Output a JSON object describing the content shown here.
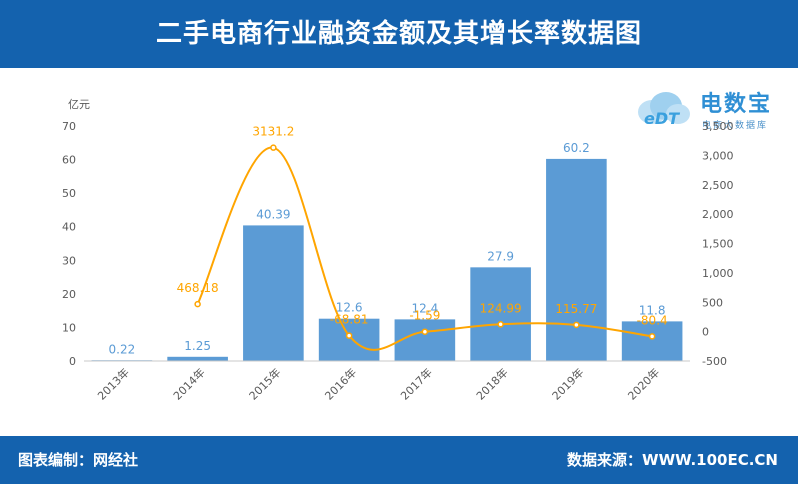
{
  "header": {
    "title": "二手电商行业融资金额及其增长率数据图"
  },
  "footer": {
    "left": "图表编制：网经社",
    "right": "数据来源：WWW.100EC.CN"
  },
  "logo": {
    "name": "电数宝",
    "sub": "电商大数据库",
    "badge_text": "eDT"
  },
  "colors": {
    "bar": "#5b9bd5",
    "line": "#ffa500",
    "header": "#1462ae",
    "axis_text": "#595959"
  },
  "chart_data": {
    "type": "bar",
    "categories": [
      "2013年",
      "2014年",
      "2015年",
      "2016年",
      "2017年",
      "2018年",
      "2019年",
      "2020年"
    ],
    "y_unit_label": "亿元",
    "ylim": [
      0,
      70
    ],
    "yticks": [
      0,
      10,
      20,
      30,
      40,
      50,
      60,
      70
    ],
    "y2lim": [
      -500,
      3500
    ],
    "y2ticks": [
      -500,
      0,
      500,
      1000,
      1500,
      2000,
      2500,
      3000,
      3500
    ],
    "y2tick_labels": [
      "-500",
      "0",
      "500",
      "1,000",
      "1,500",
      "2,000",
      "2,500",
      "3,000",
      "3,500"
    ],
    "series": [
      {
        "type": "bar",
        "axis": "left",
        "values": [
          0.22,
          1.25,
          40.39,
          12.6,
          12.4,
          27.9,
          60.2,
          11.8
        ],
        "labels": [
          "0.22",
          "1.25",
          "40.39",
          "12.6",
          "12.4",
          "27.9",
          "60.2",
          "11.8"
        ]
      },
      {
        "type": "line",
        "axis": "right",
        "values": [
          null,
          468.18,
          3131.2,
          -68.81,
          -1.59,
          124.99,
          115.77,
          -80.4
        ],
        "labels": [
          "",
          "468.18",
          "3131.2",
          "-68.81",
          "-1.59",
          "124.99",
          "115.77",
          "-80.4"
        ]
      }
    ],
    "grid": false
  }
}
